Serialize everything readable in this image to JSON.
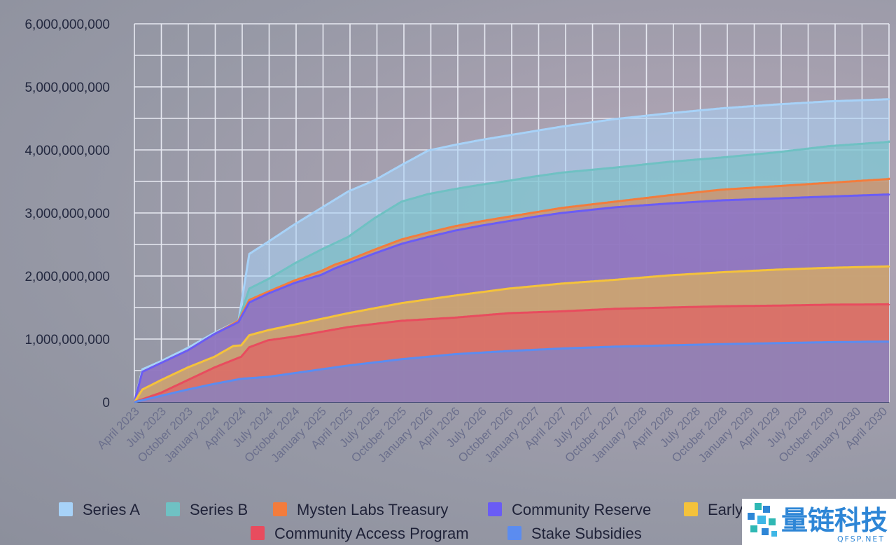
{
  "chart_data": {
    "type": "area",
    "stacked": true,
    "ylim": [
      0,
      6000000000
    ],
    "yticks": [
      0,
      1000000000,
      2000000000,
      3000000000,
      4000000000,
      5000000000,
      6000000000
    ],
    "ytick_labels": [
      "0",
      "1,000,000,000",
      "2,000,000,000",
      "3,000,000,000",
      "4,000,000,000",
      "5,000,000,000",
      "6,000,000,000"
    ],
    "categories": [
      "April 2023",
      "July 2023",
      "October 2023",
      "January 2024",
      "April 2024",
      "July 2024",
      "October 2024",
      "January 2025",
      "April 2025",
      "July 2025",
      "October 2025",
      "January 2026",
      "April 2026",
      "July 2026",
      "October 2026",
      "January 2027",
      "April 2027",
      "July 2027",
      "October 2027",
      "January 2028",
      "April 2028",
      "July 2028",
      "October 2028",
      "January 2029",
      "April 2029",
      "July 2029",
      "October 2029",
      "January 2030",
      "April 2030"
    ],
    "legend_position": "bottom",
    "series": [
      {
        "name": "Stake Subsidies",
        "color": "#5b8cf0",
        "cumulative": [
          [
            0,
            0
          ],
          [
            1,
            100000000
          ],
          [
            2,
            200000000
          ],
          [
            3,
            290000000
          ],
          [
            4,
            370000000
          ],
          [
            5,
            400000000
          ],
          [
            6,
            460000000
          ],
          [
            8,
            580000000
          ],
          [
            10,
            680000000
          ],
          [
            12,
            760000000
          ],
          [
            14,
            810000000
          ],
          [
            16,
            850000000
          ],
          [
            18,
            880000000
          ],
          [
            20,
            900000000
          ],
          [
            22,
            920000000
          ],
          [
            24,
            935000000
          ],
          [
            26,
            950000000
          ],
          [
            28,
            960000000
          ],
          [
            29,
            960000000
          ]
        ]
      },
      {
        "name": "Community Access Program",
        "color": "#e84c5e",
        "cumulative": [
          [
            0,
            0
          ],
          [
            1,
            150000000
          ],
          [
            2,
            350000000
          ],
          [
            3,
            550000000
          ],
          [
            4,
            720000000
          ],
          [
            4.3,
            870000000
          ],
          [
            5,
            980000000
          ],
          [
            6,
            1040000000
          ],
          [
            8,
            1190000000
          ],
          [
            10,
            1290000000
          ],
          [
            12,
            1340000000
          ],
          [
            14,
            1410000000
          ],
          [
            16,
            1440000000
          ],
          [
            18,
            1480000000
          ],
          [
            20,
            1500000000
          ],
          [
            22,
            1520000000
          ],
          [
            24,
            1530000000
          ],
          [
            26,
            1545000000
          ],
          [
            28,
            1550000000
          ],
          [
            29,
            1555000000
          ]
        ]
      },
      {
        "name": "Early Contributors",
        "color": "#f4c23b",
        "cumulative": [
          [
            0,
            0
          ],
          [
            0.3,
            200000000
          ],
          [
            1,
            350000000
          ],
          [
            2,
            550000000
          ],
          [
            3,
            720000000
          ],
          [
            3.7,
            890000000
          ],
          [
            4,
            900000000
          ],
          [
            4.3,
            1060000000
          ],
          [
            5,
            1140000000
          ],
          [
            6,
            1230000000
          ],
          [
            8,
            1410000000
          ],
          [
            10,
            1570000000
          ],
          [
            12,
            1690000000
          ],
          [
            14,
            1800000000
          ],
          [
            16,
            1880000000
          ],
          [
            18,
            1940000000
          ],
          [
            20,
            2010000000
          ],
          [
            22,
            2060000000
          ],
          [
            24,
            2100000000
          ],
          [
            26,
            2130000000
          ],
          [
            28,
            2150000000
          ],
          [
            29,
            2160000000
          ]
        ]
      },
      {
        "name": "Community Reserve",
        "color": "#6a5cf5",
        "cumulative": [
          [
            0,
            0
          ],
          [
            0.3,
            480000000
          ],
          [
            1,
            620000000
          ],
          [
            2,
            820000000
          ],
          [
            3,
            1080000000
          ],
          [
            3.9,
            1270000000
          ],
          [
            4.3,
            1580000000
          ],
          [
            5,
            1720000000
          ],
          [
            6,
            1890000000
          ],
          [
            7,
            2020000000
          ],
          [
            7.5,
            2120000000
          ],
          [
            8,
            2200000000
          ],
          [
            9,
            2360000000
          ],
          [
            10,
            2510000000
          ],
          [
            11,
            2620000000
          ],
          [
            12,
            2720000000
          ],
          [
            13,
            2800000000
          ],
          [
            14,
            2870000000
          ],
          [
            15,
            2940000000
          ],
          [
            16,
            3000000000
          ],
          [
            18,
            3090000000
          ],
          [
            20,
            3150000000
          ],
          [
            22,
            3200000000
          ]
        ]
      },
      {
        "name": "Mysten Labs Treasury",
        "color": "#f37c3c",
        "cumulative": [
          [
            0,
            0
          ],
          [
            0.3,
            480000000
          ],
          [
            1,
            620000000
          ],
          [
            2,
            820000000
          ],
          [
            3,
            1080000000
          ],
          [
            3.9,
            1290000000
          ],
          [
            4.3,
            1620000000
          ],
          [
            5,
            1750000000
          ],
          [
            6,
            1930000000
          ],
          [
            7,
            2080000000
          ],
          [
            7.5,
            2180000000
          ],
          [
            8,
            2250000000
          ],
          [
            9,
            2420000000
          ],
          [
            10,
            2580000000
          ],
          [
            11,
            2690000000
          ],
          [
            12,
            2790000000
          ],
          [
            13,
            2870000000
          ],
          [
            14,
            2940000000
          ],
          [
            15,
            3010000000
          ],
          [
            16,
            3080000000
          ],
          [
            18,
            3180000000
          ],
          [
            20,
            3280000000
          ],
          [
            22,
            3370000000
          ]
        ]
      },
      {
        "name": "Series B",
        "color": "#6fc1c3",
        "cumulative": [
          [
            0,
            0
          ],
          [
            0.3,
            480000000
          ],
          [
            1,
            620000000
          ],
          [
            2,
            820000000
          ],
          [
            3,
            1080000000
          ],
          [
            3.9,
            1290000000
          ],
          [
            4.3,
            1800000000
          ],
          [
            5,
            1950000000
          ],
          [
            6,
            2200000000
          ],
          [
            7,
            2420000000
          ],
          [
            8,
            2620000000
          ],
          [
            9,
            2920000000
          ],
          [
            10,
            3180000000
          ],
          [
            11,
            3300000000
          ],
          [
            12,
            3380000000
          ],
          [
            13,
            3450000000
          ],
          [
            14,
            3510000000
          ],
          [
            15,
            3580000000
          ],
          [
            16,
            3640000000
          ],
          [
            18,
            3720000000
          ],
          [
            20,
            3810000000
          ],
          [
            22,
            3880000000
          ],
          [
            24,
            3960000000
          ],
          [
            26,
            4060000000
          ]
        ]
      },
      {
        "name": "Series A",
        "color": "#a7d2f8",
        "cumulative": [
          [
            0,
            0
          ],
          [
            0.3,
            520000000
          ],
          [
            1,
            650000000
          ],
          [
            2,
            860000000
          ],
          [
            3,
            1100000000
          ],
          [
            3.9,
            1290000000
          ],
          [
            4.3,
            2350000000
          ],
          [
            5,
            2540000000
          ],
          [
            6,
            2820000000
          ],
          [
            7,
            3080000000
          ],
          [
            8,
            3340000000
          ],
          [
            9,
            3520000000
          ],
          [
            10,
            3760000000
          ],
          [
            11,
            3990000000
          ],
          [
            12,
            4080000000
          ],
          [
            13,
            4160000000
          ],
          [
            14,
            4230000000
          ],
          [
            15,
            4300000000
          ],
          [
            16,
            4370000000
          ],
          [
            17,
            4430000000
          ],
          [
            18,
            4490000000
          ],
          [
            20,
            4580000000
          ],
          [
            22,
            4660000000
          ],
          [
            24,
            4720000000
          ],
          [
            26,
            4770000000
          ]
        ]
      }
    ],
    "legend_row1": [
      "Series A",
      "Series B",
      "Mysten Labs Treasury",
      "Community Reserve",
      "Early Contributors"
    ],
    "legend_row2": [
      "Community Access Program",
      "Stake Subsidies"
    ]
  },
  "watermark": {
    "text": "量链科技",
    "sub": "QFSP.NET"
  }
}
